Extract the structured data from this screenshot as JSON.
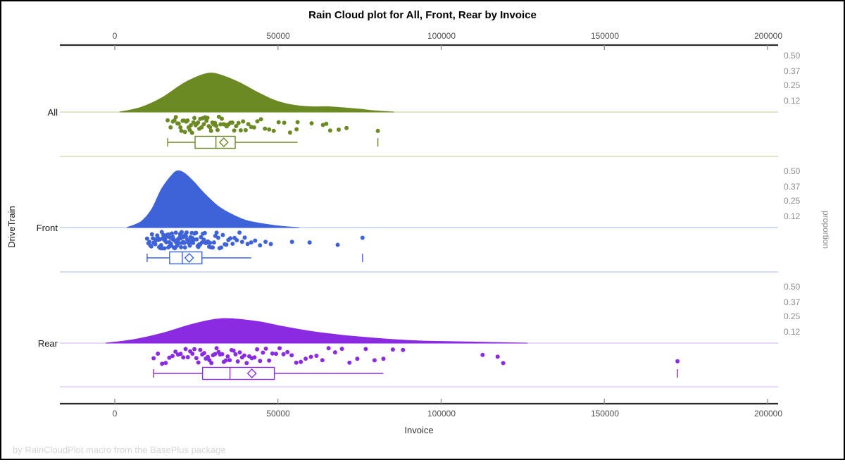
{
  "chart_data": {
    "type": "raincloud",
    "title": "Rain Cloud plot for All, Front, Rear by Invoice",
    "xlabel": "Invoice",
    "ylabel": "DriveTrain",
    "y2label": "proportion",
    "footnote": "by RainCloudPlot macro from the BasePlus package",
    "x_ticks": [
      0,
      50000,
      100000,
      150000,
      200000
    ],
    "x_tick_labels": [
      "0",
      "50000",
      "100000",
      "150000",
      "200000"
    ],
    "xlim": [
      -16800,
      203000
    ],
    "proportion_ticks": [
      0.5,
      0.37,
      0.25,
      0.12
    ],
    "proportion_tick_labels": [
      "0.50",
      "0.37",
      "0.25",
      "0.12"
    ],
    "legend": "none",
    "grid": "off",
    "groups": [
      {
        "name": "All",
        "color": "#6C8A23",
        "light_color": "#CBD5A3",
        "density": [
          [
            1500,
            0
          ],
          [
            8000,
            0.04
          ],
          [
            14400,
            0.12
          ],
          [
            20900,
            0.24
          ],
          [
            26300,
            0.31
          ],
          [
            29500,
            0.33
          ],
          [
            32800,
            0.31
          ],
          [
            38100,
            0.25
          ],
          [
            43500,
            0.17
          ],
          [
            48900,
            0.1
          ],
          [
            54300,
            0.06
          ],
          [
            59700,
            0.045
          ],
          [
            65100,
            0.045
          ],
          [
            70500,
            0.035
          ],
          [
            74800,
            0.025
          ],
          [
            79100,
            0.012
          ],
          [
            85600,
            0
          ]
        ],
        "box": {
          "min": 16200,
          "q1": 24600,
          "median": 31000,
          "q3": 36900,
          "mean": 33400,
          "whisker_high": 56000,
          "max": 80600
        },
        "points": [
          16200,
          17100,
          17800,
          18300,
          18700,
          19200,
          19600,
          20100,
          20400,
          20800,
          21200,
          21500,
          21900,
          22300,
          22600,
          23000,
          23300,
          23700,
          24100,
          24400,
          24800,
          25100,
          25500,
          25900,
          26200,
          26600,
          27000,
          27300,
          27700,
          28100,
          28400,
          28800,
          29200,
          29500,
          29900,
          30300,
          30700,
          31100,
          31500,
          31900,
          32400,
          32800,
          33300,
          33800,
          34300,
          34800,
          35400,
          36000,
          36600,
          37200,
          37900,
          38600,
          39300,
          40100,
          40900,
          41800,
          42700,
          43700,
          44800,
          46000,
          47300,
          48700,
          50200,
          51900,
          53700,
          55700,
          56000,
          60300,
          63800,
          64800,
          66000,
          68600,
          71000,
          80600
        ]
      },
      {
        "name": "Front",
        "color": "#3E63D8",
        "light_color": "#B7C8F0",
        "density": [
          [
            3700,
            0
          ],
          [
            8000,
            0.05
          ],
          [
            11200,
            0.15
          ],
          [
            14400,
            0.33
          ],
          [
            17700,
            0.45
          ],
          [
            19400,
            0.48
          ],
          [
            21300,
            0.46
          ],
          [
            24100,
            0.39
          ],
          [
            27400,
            0.29
          ],
          [
            31700,
            0.18
          ],
          [
            36000,
            0.11
          ],
          [
            40300,
            0.06
          ],
          [
            44600,
            0.036
          ],
          [
            48900,
            0.018
          ],
          [
            53200,
            0.006
          ],
          [
            56500,
            0
          ]
        ],
        "box": {
          "min": 9900,
          "q1": 16800,
          "median": 20700,
          "q3": 26700,
          "mean": 22800,
          "whisker_high": 41800,
          "max": 75900
        },
        "points": [
          9900,
          10300,
          10600,
          10900,
          11200,
          11400,
          11700,
          11900,
          12100,
          12400,
          12600,
          12800,
          13000,
          13200,
          13400,
          13600,
          13800,
          14000,
          14200,
          14400,
          14500,
          14700,
          14900,
          15000,
          15200,
          15400,
          15500,
          15700,
          15800,
          16000,
          16100,
          16300,
          16400,
          16600,
          16700,
          16900,
          17000,
          17200,
          17300,
          17500,
          17600,
          17800,
          17900,
          18100,
          18200,
          18400,
          18500,
          18700,
          18800,
          19000,
          19100,
          19300,
          19400,
          19600,
          19700,
          19900,
          20000,
          20200,
          20300,
          20500,
          20600,
          20800,
          21000,
          21100,
          21300,
          21500,
          21600,
          21800,
          22000,
          22200,
          22400,
          22600,
          22800,
          23000,
          23200,
          23400,
          23600,
          23800,
          24000,
          24200,
          24400,
          24700,
          24900,
          25100,
          25400,
          25600,
          25900,
          26100,
          26400,
          26700,
          27000,
          27300,
          27600,
          27900,
          28200,
          28500,
          28900,
          29200,
          29600,
          30000,
          30400,
          30800,
          31200,
          31700,
          32100,
          32600,
          33100,
          33700,
          34200,
          34800,
          35400,
          36100,
          36700,
          37400,
          38200,
          39000,
          39800,
          40700,
          41800,
          43000,
          44500,
          46200,
          47800,
          54300,
          59700,
          68300,
          75900
        ]
      },
      {
        "name": "Rear",
        "color": "#8A2BE2",
        "light_color": "#D9BFF2",
        "density": [
          [
            -2800,
            0
          ],
          [
            5800,
            0.03
          ],
          [
            14400,
            0.083
          ],
          [
            23100,
            0.155
          ],
          [
            29500,
            0.196
          ],
          [
            33800,
            0.208
          ],
          [
            38100,
            0.202
          ],
          [
            44600,
            0.179
          ],
          [
            51100,
            0.143
          ],
          [
            59700,
            0.101
          ],
          [
            68300,
            0.071
          ],
          [
            76900,
            0.048
          ],
          [
            85600,
            0.03
          ],
          [
            94200,
            0.018
          ],
          [
            105000,
            0.012
          ],
          [
            115700,
            0.006
          ],
          [
            126500,
            0
          ]
        ],
        "box": {
          "min": 11900,
          "q1": 26900,
          "median": 35300,
          "q3": 48900,
          "mean": 42000,
          "whisker_high": 82300,
          "max": 172400
        },
        "points": [
          11900,
          13200,
          14500,
          15600,
          16700,
          17700,
          18600,
          19400,
          20200,
          21000,
          21700,
          22400,
          23100,
          23800,
          24400,
          25000,
          25600,
          26200,
          26800,
          27400,
          27900,
          28500,
          29000,
          29600,
          30100,
          30700,
          31200,
          31800,
          32300,
          32900,
          33400,
          34000,
          34600,
          35200,
          35800,
          36400,
          37000,
          37700,
          38300,
          39000,
          39700,
          40400,
          41200,
          42000,
          42800,
          43600,
          44500,
          45400,
          46300,
          47300,
          48300,
          49400,
          50500,
          51700,
          52900,
          54200,
          55600,
          57000,
          58500,
          60100,
          61800,
          63600,
          65500,
          67500,
          69600,
          71900,
          74300,
          76900,
          79600,
          82300,
          85200,
          88300,
          112700,
          117300,
          119000,
          172400
        ]
      }
    ]
  }
}
